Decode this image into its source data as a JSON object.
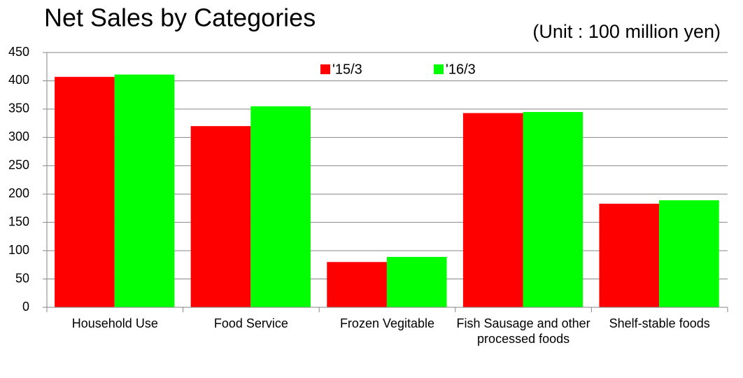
{
  "chart_data": {
    "type": "bar",
    "title": "Net Sales by Categories",
    "subtitle": "(Unit : 100 million yen)",
    "categories": [
      "Household Use",
      "Food Service",
      "Frozen Vegitable",
      "Fish Sausage and other processed foods",
      "Shelf-stable foods"
    ],
    "series": [
      {
        "name": "'15/3",
        "color": "#ff0000",
        "values": [
          407,
          320,
          80,
          343,
          183
        ]
      },
      {
        "name": "'16/3",
        "color": "#00ff00",
        "values": [
          411,
          355,
          89,
          345,
          189
        ]
      }
    ],
    "ylim": [
      0,
      450
    ],
    "yticks": [
      0,
      50,
      100,
      150,
      200,
      250,
      300,
      350,
      400,
      450
    ],
    "grid": true,
    "legend": "top"
  }
}
